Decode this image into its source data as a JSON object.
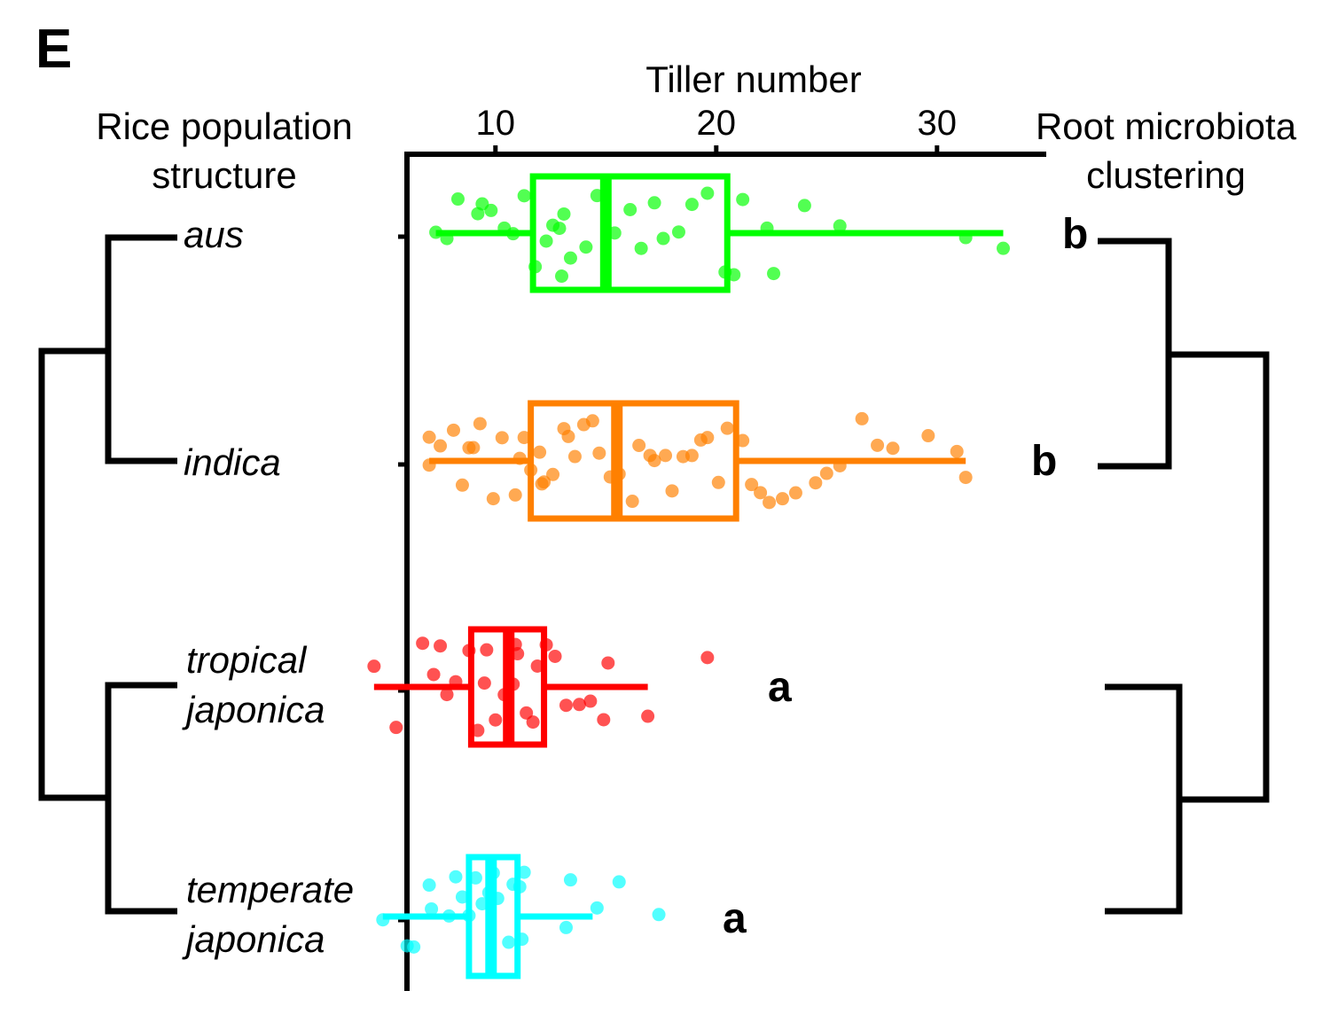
{
  "panel_label": "E",
  "left_header": [
    "Rice population",
    "structure"
  ],
  "right_header": [
    "Root microbiota",
    "clustering"
  ],
  "colors": {
    "aus": "#00ff00",
    "indica": "#ff8000",
    "tropical_japonica": "#ff0000",
    "temperate_japonica": "#00ffff",
    "axis": "#000000"
  },
  "chart_data": {
    "type": "box",
    "orientation": "horizontal",
    "xlabel": "Tiller number",
    "xticks": [
      10,
      20,
      30
    ],
    "xlim": [
      4,
      33
    ],
    "grid": false,
    "groups": [
      {
        "label": [
          "aus"
        ],
        "color": "#00ff00",
        "significance": "b",
        "stats": {
          "whisker_low": 7.3,
          "q1": 11.7,
          "median": 15.0,
          "q3": 20.5,
          "whisker_high": 33.0
        },
        "points": [
          7.3,
          7.8,
          8.3,
          9.8,
          10.4,
          10.8,
          11.3,
          11.8,
          12.3,
          12.6,
          13.1,
          13.4,
          14.1,
          14.6,
          15.4,
          16.1,
          16.6,
          17.2,
          17.6,
          18.3,
          18.9,
          19.6,
          20.4,
          20.8,
          21.2,
          22.3,
          22.6,
          24.0,
          25.6,
          31.3,
          33.0,
          9.2,
          9.4,
          13.0,
          12.9
        ]
      },
      {
        "label": [
          "indica"
        ],
        "color": "#ff8000",
        "significance": "b",
        "stats": {
          "whisker_low": 7.0,
          "q1": 11.6,
          "median": 15.5,
          "q3": 20.9,
          "whisker_high": 31.3
        },
        "points": [
          7.0,
          7.0,
          7.5,
          8.1,
          8.5,
          8.8,
          9.0,
          9.3,
          9.9,
          10.3,
          10.9,
          11.1,
          11.3,
          11.6,
          12.0,
          12.1,
          12.6,
          13.1,
          13.3,
          13.6,
          14.0,
          14.4,
          14.7,
          15.2,
          15.6,
          16.2,
          16.5,
          17.0,
          17.2,
          17.7,
          18.0,
          18.5,
          18.9,
          19.3,
          19.6,
          20.1,
          20.5,
          21.2,
          21.6,
          22.0,
          22.4,
          23.0,
          23.6,
          24.5,
          25.0,
          25.6,
          26.6,
          27.3,
          28.0,
          29.6,
          30.9,
          31.3,
          12.2
        ]
      },
      {
        "label": [
          "tropical",
          "japonica"
        ],
        "color": "#ff0000",
        "significance": "a",
        "stats": {
          "whisker_low": 4.5,
          "q1": 8.9,
          "median": 10.6,
          "q3": 12.2,
          "whisker_high": 16.9
        },
        "points": [
          4.5,
          5.5,
          6.7,
          7.2,
          7.8,
          8.2,
          8.8,
          9.2,
          9.5,
          10.0,
          10.4,
          10.8,
          11.0,
          11.4,
          11.7,
          11.9,
          12.3,
          12.7,
          13.2,
          13.8,
          14.3,
          14.9,
          15.1,
          16.9,
          19.6,
          7.5,
          9.6,
          10.9
        ]
      },
      {
        "label": [
          "temperate",
          "japonica"
        ],
        "color": "#00ffff",
        "significance": "a",
        "stats": {
          "whisker_low": 4.9,
          "q1": 8.8,
          "median": 9.8,
          "q3": 11.0,
          "whisker_high": 14.4
        },
        "points": [
          4.9,
          6.0,
          6.3,
          7.0,
          7.9,
          8.2,
          8.5,
          8.8,
          9.1,
          9.4,
          9.7,
          10.1,
          10.6,
          10.8,
          11.1,
          11.3,
          13.2,
          13.4,
          14.6,
          15.6,
          17.4,
          7.1,
          9.9,
          11.2
        ]
      }
    ]
  }
}
